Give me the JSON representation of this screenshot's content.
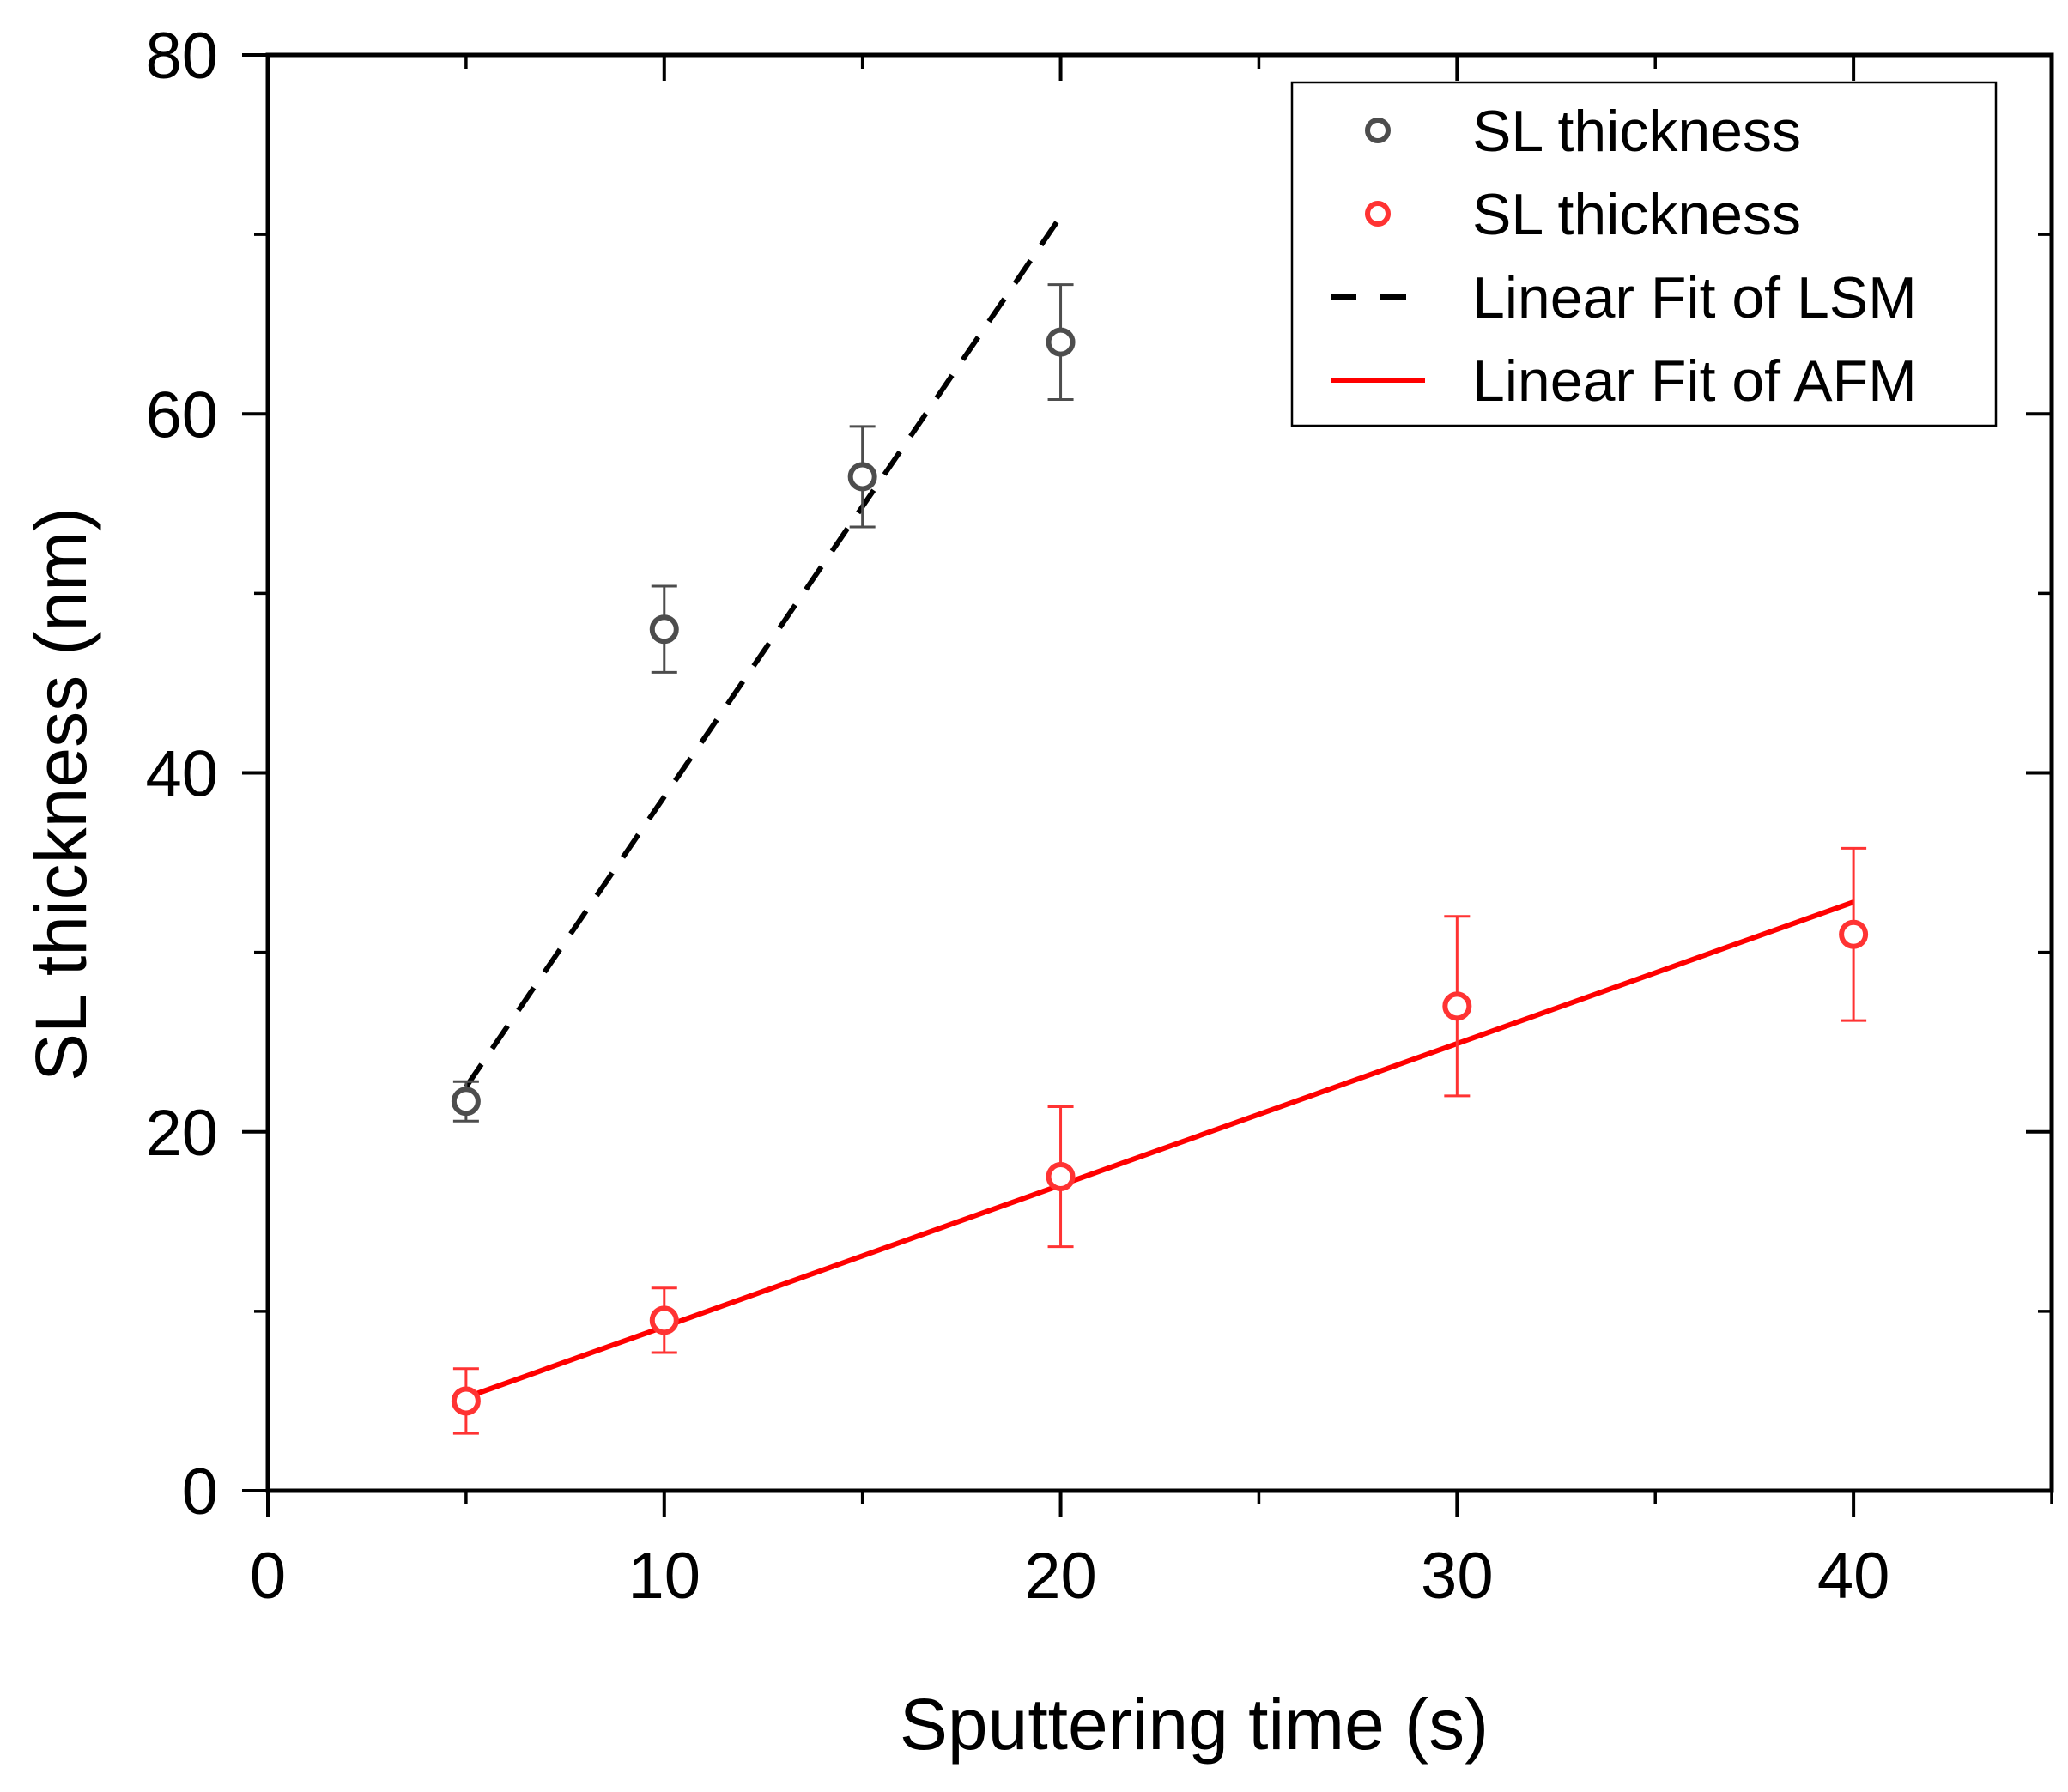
{
  "chart_data": {
    "type": "scatter",
    "xlabel": "Sputtering time (s)",
    "ylabel": "SL thickness (nm)",
    "xlim": [
      0,
      45
    ],
    "ylim": [
      0,
      80
    ],
    "xticks": [
      0,
      10,
      20,
      30,
      40
    ],
    "yticks": [
      0,
      20,
      40,
      60,
      80
    ],
    "x_minor_step": 5,
    "y_minor_step": 10,
    "legend_position": "top-right",
    "series": [
      {
        "name": "SL thickness",
        "role": "LSM",
        "kind": "scatter",
        "color": "#4d4d4d",
        "x": [
          5,
          10,
          15,
          20
        ],
        "y": [
          21.7,
          48.0,
          56.5,
          64.0
        ],
        "error": [
          1.1,
          2.4,
          2.8,
          3.2
        ]
      },
      {
        "name": "SL thickness",
        "role": "AFM",
        "kind": "scatter",
        "color": "#ff3333",
        "x": [
          5,
          10,
          20,
          30,
          40
        ],
        "y": [
          5.0,
          9.5,
          17.5,
          27.0,
          31.0
        ],
        "error": [
          1.8,
          1.8,
          3.9,
          5.0,
          4.8
        ]
      },
      {
        "name": "Linear Fit of LSM",
        "kind": "line",
        "style": "dashed",
        "color": "#000000",
        "x": [
          5,
          20
        ],
        "y": [
          22.5,
          71.0
        ]
      },
      {
        "name": "Linear Fit of AFM",
        "kind": "line",
        "style": "solid",
        "color": "#ff0000",
        "x": [
          5,
          40
        ],
        "y": [
          5.2,
          32.8
        ]
      }
    ]
  }
}
